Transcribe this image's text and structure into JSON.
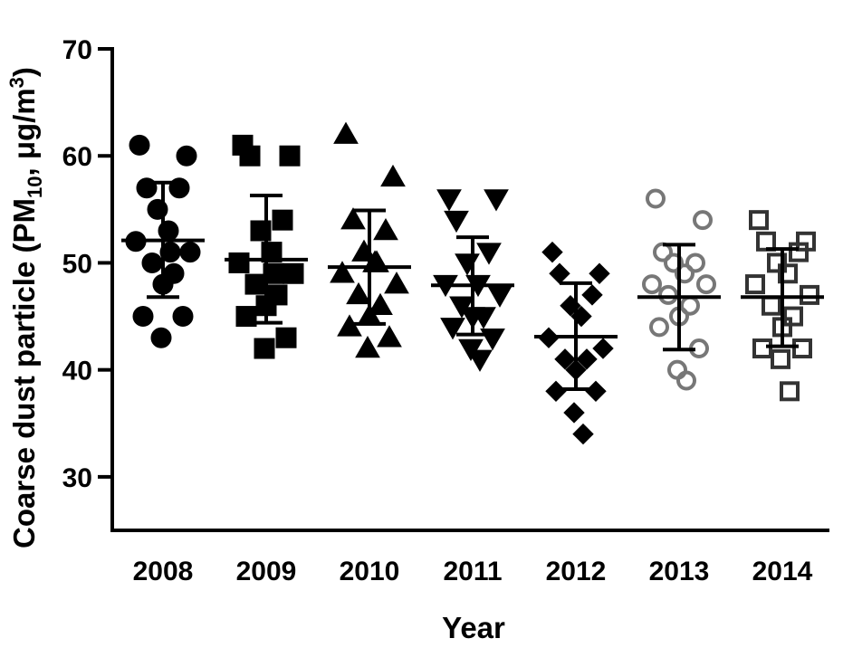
{
  "chart_data": {
    "type": "scatter",
    "xlabel": "Year",
    "ylabel": {
      "prefix": "Coarse dust particle (PM",
      "subscript": "10",
      "middle": ", μg/m",
      "superscript": "3",
      "suffix": ")"
    },
    "ylim": [
      25,
      70
    ],
    "yticks": [
      "30",
      "40",
      "50",
      "60",
      "70"
    ],
    "grid": false,
    "categories": [
      "2008",
      "2009",
      "2010",
      "2011",
      "2012",
      "2013",
      "2014"
    ],
    "series": [
      {
        "category": "2008",
        "marker": "circle",
        "filled": true,
        "color": "#000000",
        "mean": 52.1,
        "sd_upper": 57.5,
        "sd_lower": 46.8,
        "points": [
          61,
          60,
          57,
          57,
          55,
          53,
          52,
          51,
          50,
          49,
          48,
          45,
          45,
          43,
          51
        ]
      },
      {
        "category": "2009",
        "marker": "square",
        "filled": true,
        "color": "#000000",
        "mean": 50.3,
        "sd_upper": 56.3,
        "sd_lower": 44.4,
        "points": [
          61,
          60,
          60,
          54,
          53,
          51,
          50,
          49,
          48,
          47,
          46,
          45,
          43,
          42,
          49
        ]
      },
      {
        "category": "2010",
        "marker": "triangle-up",
        "filled": true,
        "color": "#000000",
        "mean": 49.6,
        "sd_upper": 54.9,
        "sd_lower": 44.3,
        "points": [
          62,
          58,
          54,
          53,
          51,
          50,
          49,
          48,
          47,
          46,
          45,
          44,
          43,
          42,
          50
        ]
      },
      {
        "category": "2011",
        "marker": "triangle-down",
        "filled": true,
        "color": "#000000",
        "mean": 47.9,
        "sd_upper": 52.4,
        "sd_lower": 43.3,
        "points": [
          56,
          56,
          54,
          51,
          50,
          48,
          48,
          47,
          46,
          45,
          45,
          44,
          43,
          42,
          41
        ]
      },
      {
        "category": "2012",
        "marker": "diamond",
        "filled": true,
        "color": "#000000",
        "mean": 43.1,
        "sd_upper": 48.1,
        "sd_lower": 38.2,
        "points": [
          51,
          49,
          49,
          47,
          46,
          45,
          43,
          42,
          41,
          41,
          40,
          38,
          38,
          36,
          34
        ]
      },
      {
        "category": "2013",
        "marker": "circle",
        "filled": false,
        "color": "#777777",
        "mean": 46.8,
        "sd_upper": 51.7,
        "sd_lower": 41.9,
        "points": [
          56,
          54,
          51,
          50,
          50,
          49,
          48,
          48,
          47,
          46,
          45,
          44,
          42,
          40,
          39
        ]
      },
      {
        "category": "2014",
        "marker": "square",
        "filled": false,
        "color": "#333333",
        "mean": 46.8,
        "sd_upper": 51.3,
        "sd_lower": 42.2,
        "points": [
          54,
          52,
          52,
          51,
          50,
          49,
          48,
          47,
          46,
          45,
          44,
          42,
          42,
          41,
          38
        ]
      }
    ]
  }
}
